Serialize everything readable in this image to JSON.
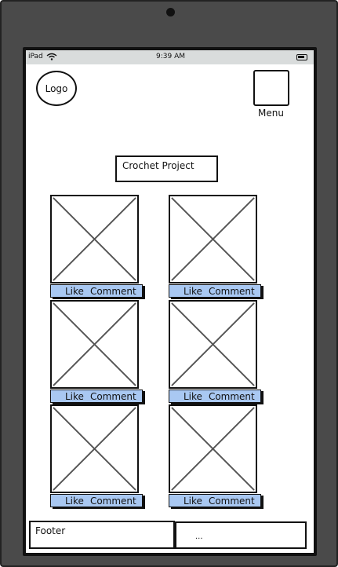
{
  "status_bar": {
    "device": "iPad",
    "time": "9:39 AM"
  },
  "header": {
    "logo_label": "Logo",
    "menu_label": "Menu"
  },
  "page_title": "Crochet Project",
  "cards": [
    {
      "like": "Like",
      "comment": "Comment"
    },
    {
      "like": "Like",
      "comment": "Comment"
    },
    {
      "like": "Like",
      "comment": "Comment"
    },
    {
      "like": "Like",
      "comment": "Comment"
    },
    {
      "like": "Like",
      "comment": "Comment"
    },
    {
      "like": "Like",
      "comment": "Comment"
    }
  ],
  "footer": {
    "label": "Footer",
    "extra": "..."
  },
  "colors": {
    "action_bar": "#a9c8f2",
    "status_bar": "#d9dcdc",
    "device_frame": "#4a4a4a"
  }
}
